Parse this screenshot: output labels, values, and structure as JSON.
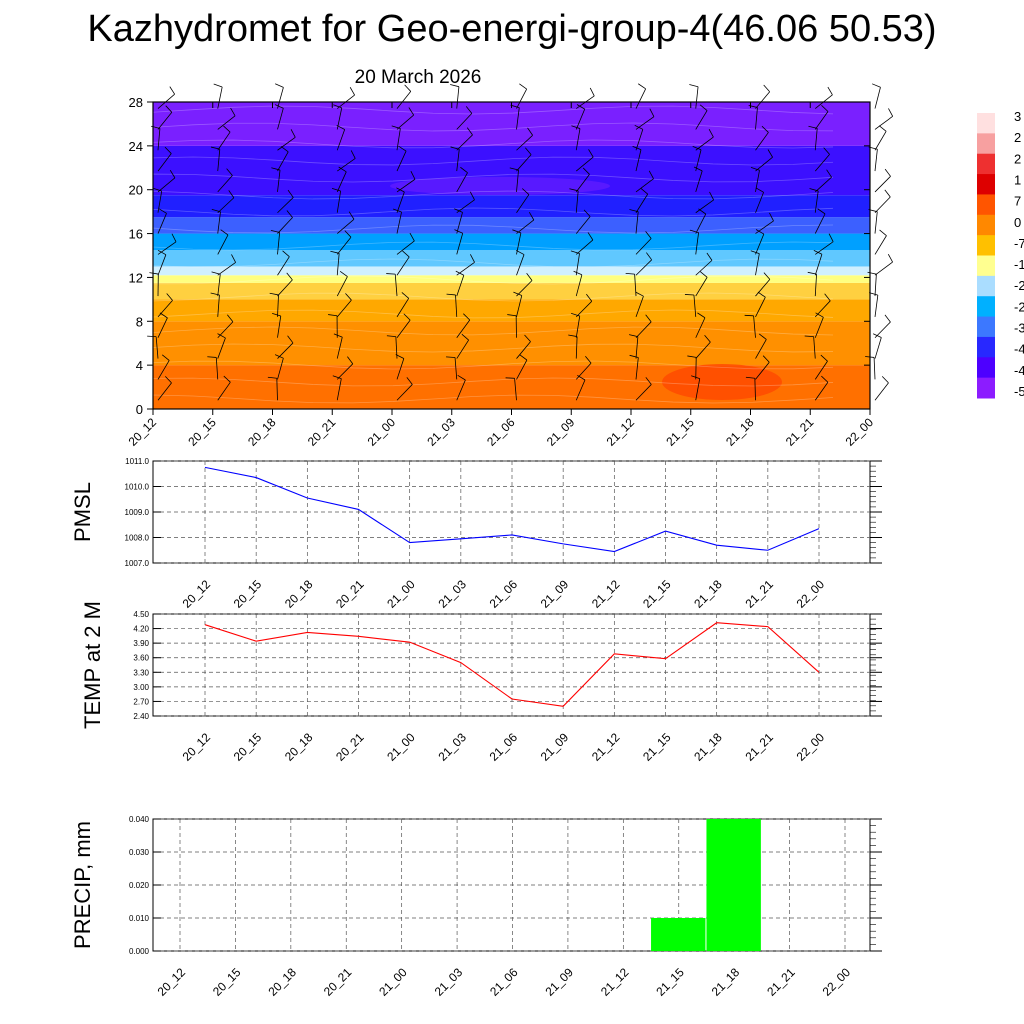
{
  "title": "Kazhydromet for Geo-energi-group-4(46.06 50.53)",
  "date": "20 March 2026",
  "colors": {
    "pmsl_line": "#0000ff",
    "temp_line": "#ff0000",
    "precip_bar": "#00ff00"
  },
  "chart_data": [
    {
      "type": "heatmap",
      "name": "",
      "x": [
        "20_12",
        "20_15",
        "20_18",
        "20_21",
        "21_00",
        "21_03",
        "21_06",
        "21_09",
        "21_12",
        "21_15",
        "21_18",
        "21_21",
        "22_00"
      ],
      "y_ticks": [
        0,
        4,
        8,
        12,
        16,
        20,
        24,
        28
      ],
      "ylim": [
        0,
        28
      ],
      "colorbar_labels": [
        "3",
        "2",
        "2",
        "1",
        "7",
        "0",
        "-7",
        "-1",
        "-2",
        "-2",
        "-3",
        "-4",
        "-4",
        "-5"
      ],
      "colorbar_colors": [
        "#ffe0e0",
        "#f7a0a0",
        "#ee3030",
        "#dd0000",
        "#ff5500",
        "#ff8800",
        "#ffc000",
        "#ffff90",
        "#aaddff",
        "#00b0ff",
        "#3c78ff",
        "#2828ff",
        "#4d00ff",
        "#8c1cff"
      ],
      "bands": [
        {
          "from": 0,
          "to": 4,
          "color": "#ff7000"
        },
        {
          "from": 4,
          "to": 8,
          "color": "#ff9000"
        },
        {
          "from": 8,
          "to": 10,
          "color": "#ffa800"
        },
        {
          "from": 10,
          "to": 11.5,
          "color": "#ffd040"
        },
        {
          "from": 11.5,
          "to": 12.2,
          "color": "#ffff80"
        },
        {
          "from": 12.2,
          "to": 13,
          "color": "#d0f0ff"
        },
        {
          "from": 13,
          "to": 14.5,
          "color": "#60c8ff"
        },
        {
          "from": 14.5,
          "to": 16,
          "color": "#00a0ff"
        },
        {
          "from": 16,
          "to": 17.5,
          "color": "#3c60ff"
        },
        {
          "from": 17.5,
          "to": 19.5,
          "color": "#2020ff"
        },
        {
          "from": 19.5,
          "to": 24,
          "color": "#3c10ff"
        },
        {
          "from": 24,
          "to": 28,
          "color": "#7a20ff"
        }
      ]
    },
    {
      "type": "line",
      "ylabel": "PMSL",
      "x": [
        "20_12",
        "20_15",
        "20_18",
        "20_21",
        "21_00",
        "21_03",
        "21_06",
        "21_09",
        "21_12",
        "21_15",
        "21_18",
        "21_21",
        "22_00"
      ],
      "y_ticks": [
        "1007.0",
        "1008.0",
        "1009.0",
        "1010.0",
        "1011.0"
      ],
      "ylim": [
        1007.0,
        1011.0
      ],
      "values": [
        1010.75,
        1010.35,
        1009.55,
        1009.1,
        1007.8,
        1007.95,
        1008.1,
        1007.75,
        1007.45,
        1008.25,
        1007.7,
        1007.5,
        1008.35
      ]
    },
    {
      "type": "line",
      "ylabel": "TEMP at 2 M",
      "x": [
        "20_12",
        "20_15",
        "20_18",
        "20_21",
        "21_00",
        "21_03",
        "21_06",
        "21_09",
        "21_12",
        "21_15",
        "21_18",
        "21_21",
        "22_00"
      ],
      "y_ticks": [
        "2.40",
        "2.70",
        "3.00",
        "3.30",
        "3.60",
        "3.90",
        "4.20",
        "4.50"
      ],
      "ylim": [
        2.4,
        4.5
      ],
      "values": [
        4.28,
        3.94,
        4.12,
        4.04,
        3.92,
        3.5,
        2.75,
        2.6,
        3.68,
        3.58,
        4.32,
        4.24,
        3.3
      ]
    },
    {
      "type": "bar",
      "ylabel": "PRECIP, mm",
      "categories": [
        "20_12",
        "20_15",
        "20_18",
        "20_21",
        "21_00",
        "21_03",
        "21_06",
        "21_09",
        "21_12",
        "21_15",
        "21_18",
        "21_21",
        "22_00"
      ],
      "y_ticks": [
        "0.000",
        "0.010",
        "0.020",
        "0.030",
        "0.040"
      ],
      "ylim": [
        0,
        0.04
      ],
      "values": [
        0,
        0,
        0,
        0,
        0,
        0,
        0,
        0,
        0,
        0.01,
        0.04,
        0,
        0
      ]
    }
  ]
}
